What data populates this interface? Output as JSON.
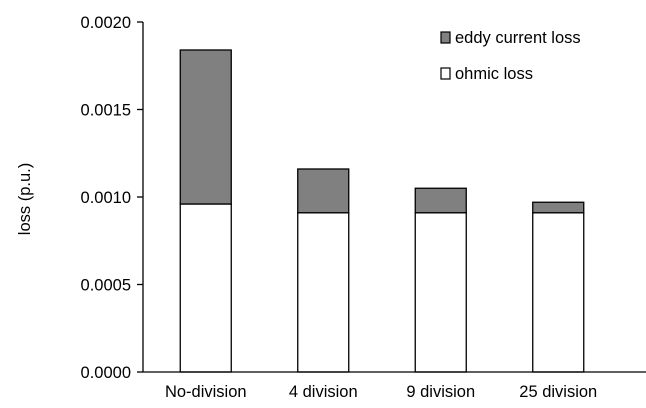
{
  "chart_data": {
    "type": "bar",
    "stacked": true,
    "categories": [
      "No-division",
      "4 division",
      "9 division",
      "25 division"
    ],
    "series": [
      {
        "name": "ohmic loss",
        "color": "#ffffff",
        "values": [
          0.00096,
          0.00091,
          0.00091,
          0.00091
        ]
      },
      {
        "name": "eddy current loss",
        "color": "#808080",
        "values": [
          0.00088,
          0.00025,
          0.00014,
          6e-05
        ]
      }
    ],
    "ylabel": "loss (p.u.)",
    "xlabel": "",
    "title": "",
    "ylim": [
      0,
      0.002
    ],
    "yticks": [
      "0.0000",
      "0.0005",
      "0.0010",
      "0.0015",
      "0.0020"
    ],
    "ytick_values": [
      0,
      0.0005,
      0.001,
      0.0015,
      0.002
    ],
    "grid": false,
    "legend": {
      "placement": "top-right",
      "entries": [
        "eddy current loss",
        "ohmic loss"
      ]
    }
  }
}
